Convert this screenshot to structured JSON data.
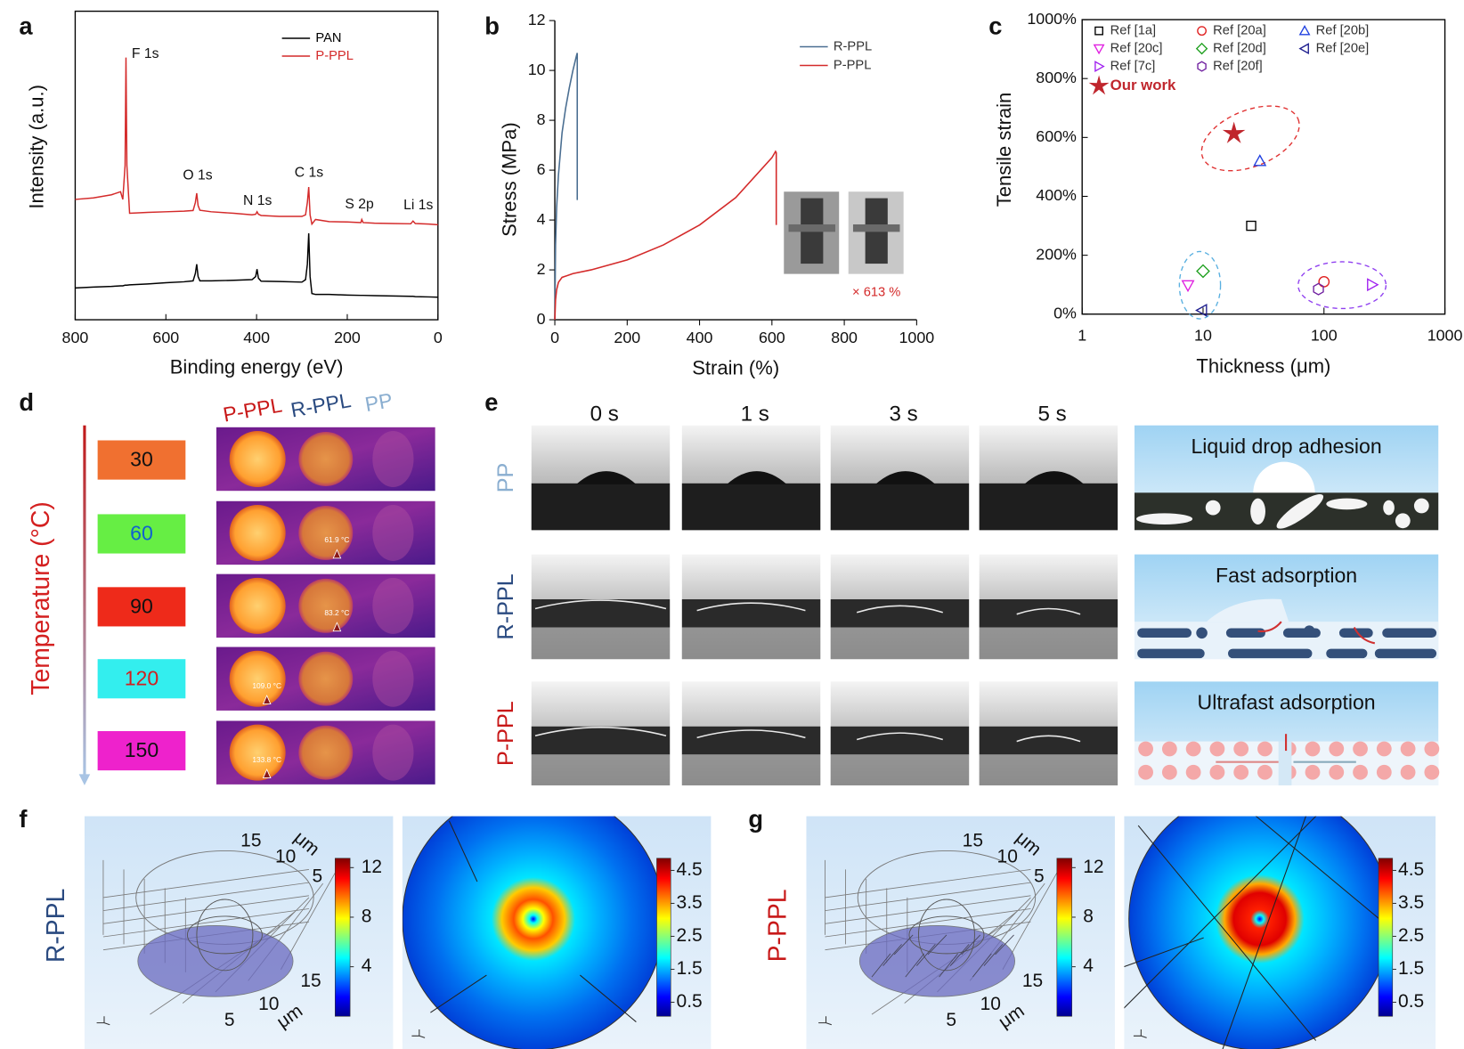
{
  "chart_data": [
    {
      "type": "line",
      "panel": "a",
      "xlabel": "Binding energy (eV)",
      "ylabel": "Intensity (a.u.)",
      "xlim": [
        800,
        0
      ],
      "xticks": [
        800,
        600,
        400,
        200,
        0
      ],
      "ylim": [
        0,
        100
      ],
      "legend": "upper center",
      "x": [
        800,
        760,
        720,
        700,
        695,
        690,
        688,
        686,
        680,
        640,
        600,
        560,
        540,
        535,
        532,
        529,
        525,
        500,
        450,
        410,
        402,
        399,
        396,
        390,
        350,
        300,
        292,
        288,
        285,
        282,
        278,
        270,
        240,
        200,
        170,
        168,
        165,
        140,
        100,
        60,
        55,
        50,
        20,
        0
      ],
      "series": [
        {
          "name": "PAN",
          "color": "#000000",
          "values": [
            10.3,
            10.6,
            10.8,
            11,
            11,
            11.2,
            11.2,
            11.2,
            11.3,
            11.6,
            12,
            12.3,
            12.6,
            15,
            18,
            14,
            12.6,
            12.6,
            12.8,
            13,
            14,
            16.4,
            13.5,
            12.5,
            12.4,
            12.2,
            13,
            18,
            28,
            14,
            8.5,
            8.2,
            8.2,
            8,
            7.9,
            7.9,
            7.9,
            7.8,
            7.7,
            7.6,
            7.6,
            7.5,
            7.4,
            7.3
          ]
        },
        {
          "name": "P-PPL",
          "color": "#d42a2a",
          "values": [
            39,
            39.5,
            40.5,
            41.5,
            39,
            50,
            85,
            50,
            34.5,
            34.8,
            35,
            35.2,
            35.4,
            38,
            41,
            37,
            35.5,
            35,
            34.5,
            34,
            34.2,
            35,
            34.2,
            33.8,
            33.5,
            33.5,
            34,
            38,
            43,
            34,
            31,
            32.5,
            31.8,
            31.7,
            31.5,
            32.5,
            31.5,
            31.3,
            31.2,
            31.1,
            32,
            31.2,
            31,
            30.8
          ]
        }
      ],
      "annotations": [
        "F 1s",
        "O 1s",
        "N 1s",
        "C 1s",
        "S 2p",
        "Li 1s"
      ]
    },
    {
      "type": "xyline",
      "panel": "b",
      "xlabel": "Strain (%)",
      "ylabel": "Stress (MPa)",
      "xlim": [
        0,
        1000
      ],
      "xticks": [
        0,
        200,
        400,
        600,
        800,
        1000
      ],
      "ylim": [
        0,
        12
      ],
      "yticks": [
        0,
        2,
        4,
        6,
        8,
        10,
        12
      ],
      "legend": "upper right",
      "series": [
        {
          "name": "R-PPL",
          "color": "#4a6e91",
          "x": [
            0,
            2,
            5,
            10,
            20,
            30,
            40,
            50,
            55,
            60,
            62,
            62,
            62
          ],
          "values": [
            0,
            3,
            4.5,
            5.8,
            7.5,
            8.5,
            9.3,
            10,
            10.3,
            10.6,
            10.7,
            6,
            4.8
          ]
        },
        {
          "name": "P-PPL",
          "color": "#d42a2a",
          "x": [
            0,
            2,
            5,
            10,
            20,
            50,
            100,
            200,
            300,
            400,
            500,
            600,
            610,
            612,
            612
          ],
          "values": [
            0,
            0.8,
            1.2,
            1.5,
            1.7,
            1.85,
            2.0,
            2.4,
            3.0,
            3.8,
            4.9,
            6.5,
            6.75,
            6.7,
            3.8
          ]
        }
      ],
      "annotation": "× 613 %"
    },
    {
      "type": "scatter",
      "panel": "c",
      "xlabel": "Thickness (μm)",
      "ylabel": "Tensile strain",
      "xscale": "log",
      "xlim": [
        1,
        1000
      ],
      "xticks": [
        1,
        10,
        100,
        1000
      ],
      "ylim": [
        0,
        1000
      ],
      "yticks": [
        {
          "value": 0,
          "label": "0%"
        },
        {
          "value": 200,
          "label": "200%"
        },
        {
          "value": 400,
          "label": "400%"
        },
        {
          "value": 600,
          "label": "600%"
        },
        {
          "value": 800,
          "label": "800%"
        },
        {
          "value": 1000,
          "label": "1000%"
        }
      ],
      "legend": "upper left",
      "series": [
        {
          "name": "Ref [1a]",
          "color": "#000000",
          "marker": "square",
          "x": [
            25
          ],
          "values": [
            300
          ]
        },
        {
          "name": "Ref [20a]",
          "color": "#e02020",
          "marker": "circle",
          "x": [
            100
          ],
          "values": [
            110
          ]
        },
        {
          "name": "Ref [20b]",
          "color": "#2040e0",
          "marker": "triangle-up",
          "x": [
            29.5
          ],
          "values": [
            520
          ]
        },
        {
          "name": "Ref [20c]",
          "color": "#e020e0",
          "marker": "triangle-down",
          "x": [
            7.5
          ],
          "values": [
            98
          ]
        },
        {
          "name": "Ref [20d]",
          "color": "#20a020",
          "marker": "diamond",
          "x": [
            10
          ],
          "values": [
            146
          ]
        },
        {
          "name": "Ref [20e]",
          "color": "#202090",
          "marker": "triangle-left",
          "x": [
            9.8
          ],
          "values": [
            13
          ]
        },
        {
          "name": "Ref [7c]",
          "color": "#a020f0",
          "marker": "triangle-right",
          "x": [
            250
          ],
          "values": [
            100
          ]
        },
        {
          "name": "Ref [20f]",
          "color": "#7020a0",
          "marker": "hexagon",
          "x": [
            90
          ],
          "values": [
            85
          ]
        },
        {
          "name": "Our work",
          "color": "#c0262d",
          "marker": "star",
          "x": [
            18
          ],
          "values": [
            613
          ]
        }
      ]
    }
  ],
  "panels": {
    "d": {
      "label": "d",
      "axis_label": "Temperature (°C)",
      "columns": [
        "P-PPL",
        "R-PPL",
        "PP"
      ],
      "temperatures": [
        30,
        60,
        90,
        120,
        150
      ],
      "readings": [
        null,
        "61.9 °C",
        "83.2 °C",
        "109.0 °C",
        "133.8 °C"
      ]
    },
    "e": {
      "label": "e",
      "times": [
        "0 s",
        "1 s",
        "3 s",
        "5 s"
      ],
      "rows": [
        "PP",
        "R-PPL",
        "P-PPL"
      ],
      "schemes": [
        "Liquid drop adhesion",
        "Fast adsorption",
        "Ultrafast adsorption"
      ]
    },
    "f": {
      "label": "f",
      "row_label": "R-PPL",
      "axis_ticks": [
        15,
        10,
        5
      ],
      "axis_unit": "μm",
      "colorbar_left": [
        12,
        8,
        4
      ],
      "colorbar_right": [
        4.5,
        3.5,
        2.5,
        1.5,
        0.5
      ]
    },
    "g": {
      "label": "g",
      "row_label": "P-PPL",
      "axis_ticks": [
        15,
        10,
        5
      ],
      "axis_unit": "μm",
      "colorbar_left": [
        12,
        8,
        4
      ],
      "colorbar_right": [
        4.5,
        3.5,
        2.5,
        1.5,
        0.5
      ]
    }
  }
}
